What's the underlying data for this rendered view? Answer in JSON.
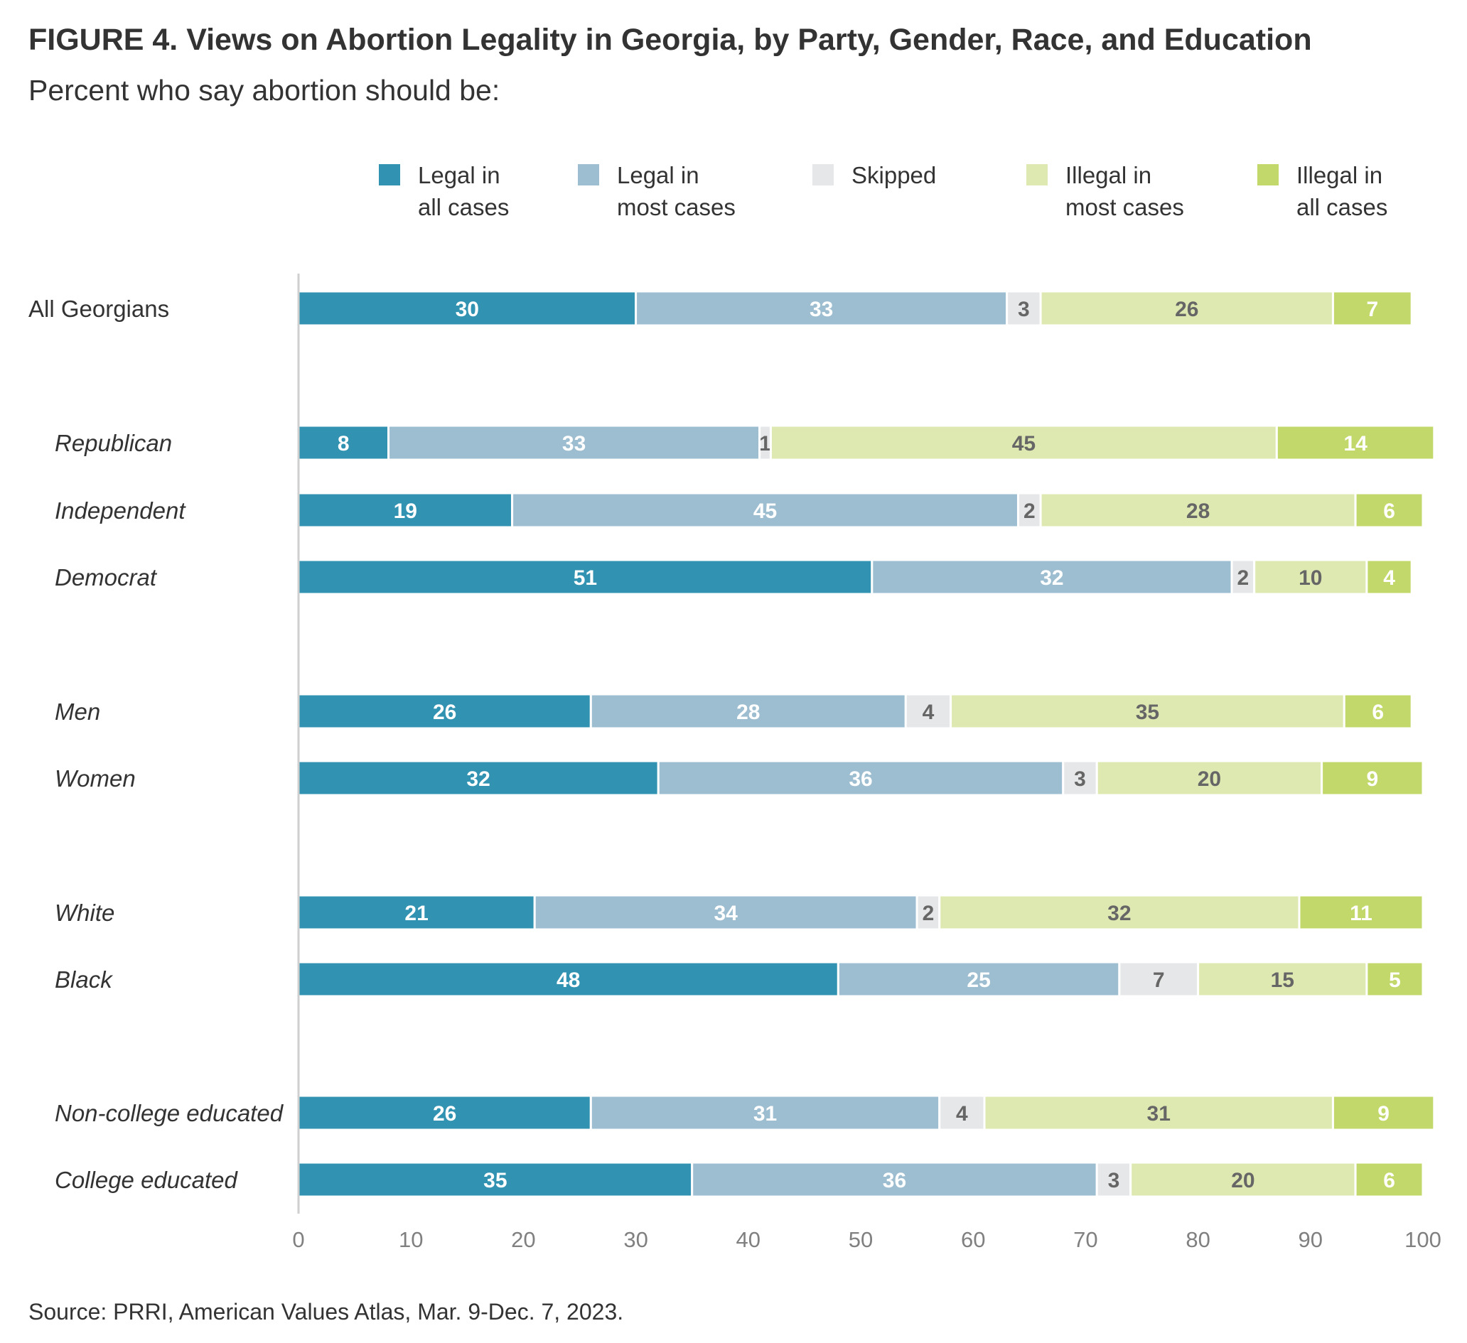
{
  "title": "FIGURE 4. Views on Abortion Legality in Georgia, by Party, Gender, Race, and Education",
  "subtitle": "Percent who say abortion should be:",
  "source": "Source: PRRI, American Values Atlas, Mar. 9-Dec. 7, 2023.",
  "chart_data": {
    "type": "bar",
    "orientation": "horizontal",
    "stacked": true,
    "title": "FIGURE 4. Views on Abortion Legality in Georgia, by Party, Gender, Race, and Education",
    "subtitle": "Percent who say abortion should be:",
    "legend_position": "top",
    "grid": false,
    "xlim": [
      0,
      100
    ],
    "xticks": [
      0,
      10,
      20,
      30,
      40,
      50,
      60,
      70,
      80,
      90,
      100
    ],
    "categories": [
      "All Georgians",
      "Republican",
      "Independent",
      "Democrat",
      "Men",
      "Women",
      "White",
      "Black",
      "Non-college educated",
      "College educated"
    ],
    "category_groups": [
      [
        0
      ],
      [
        1,
        2,
        3
      ],
      [
        4,
        5
      ],
      [
        6,
        7
      ],
      [
        8,
        9
      ]
    ],
    "italic_categories": [
      "Republican",
      "Independent",
      "Democrat",
      "Men",
      "Women",
      "White",
      "Black",
      "Non-college educated",
      "College educated"
    ],
    "series": [
      {
        "name": "Legal in all cases",
        "legend_lines": [
          "Legal in",
          "all cases"
        ],
        "color": "#3193b1",
        "label_color": "#ffffff",
        "values": [
          30,
          8,
          19,
          51,
          26,
          32,
          21,
          48,
          26,
          35
        ]
      },
      {
        "name": "Legal in most cases",
        "legend_lines": [
          "Legal in",
          "most cases"
        ],
        "color": "#9dbdd0",
        "label_color": "#ffffff",
        "values": [
          33,
          33,
          45,
          32,
          28,
          36,
          34,
          25,
          31,
          36
        ]
      },
      {
        "name": "Skipped",
        "legend_lines": [
          "Skipped"
        ],
        "color": "#e6e7e8",
        "label_color": "#666666",
        "values": [
          3,
          1,
          2,
          2,
          4,
          3,
          2,
          7,
          4,
          3
        ]
      },
      {
        "name": "Illegal in most cases",
        "legend_lines": [
          "Illegal in",
          "most cases"
        ],
        "color": "#dde9b1",
        "label_color": "#666666",
        "values": [
          26,
          45,
          28,
          10,
          35,
          20,
          32,
          15,
          31,
          20
        ]
      },
      {
        "name": "Illegal in all cases",
        "legend_lines": [
          "Illegal in",
          "all cases"
        ],
        "color": "#c2d86a",
        "label_color": "#ffffff",
        "values": [
          7,
          14,
          6,
          4,
          6,
          9,
          11,
          5,
          9,
          6
        ]
      }
    ]
  }
}
